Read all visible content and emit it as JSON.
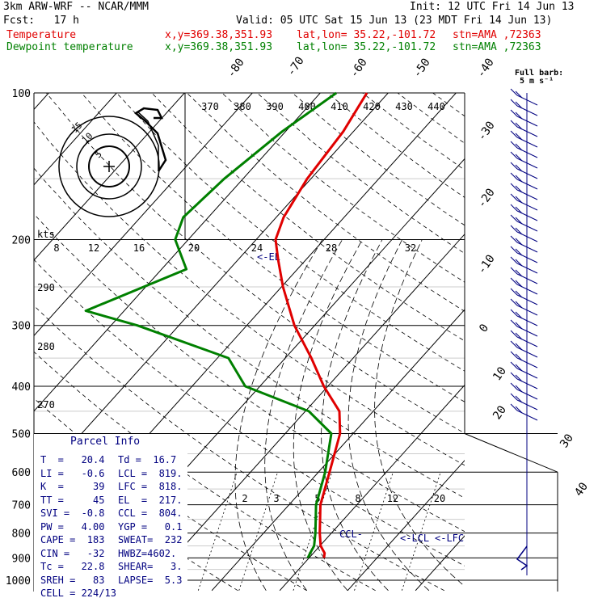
{
  "header": {
    "model": "3km ARW-WRF -- NCAR/MMM",
    "init": "Init: 12 UTC Fri 14 Jun 13",
    "fcst": "Fcst:   17 h",
    "valid": "Valid: 05 UTC Sat 15 Jun 13 (23 MDT Fri 14 Jun 13)",
    "temp_label": "Temperature",
    "dew_label": "Dewpoint temperature",
    "xy": "x,y=369.38,351.93",
    "latlon": "lat,lon= 35.22,-101.72",
    "stn": "stn=AMA ,72363"
  },
  "barb_legend": [
    "Full barb:",
    "5 m s⁻¹"
  ],
  "colors": {
    "temperature": "#e00000",
    "dewpoint": "#008000",
    "text_blue": "#000080",
    "grid": "#000000"
  },
  "chart_data": {
    "type": "skew-t log-p",
    "pressure_levels": [
      100,
      200,
      300,
      400,
      500,
      600,
      700,
      800,
      900,
      1000
    ],
    "y_scale": "log",
    "isotherm_labels": [
      "-80",
      "-70",
      "-60",
      "-50",
      "-40",
      "-30",
      "-20",
      "-10",
      "0",
      "10",
      "20",
      "30",
      "40"
    ],
    "theta_labels": [
      "370",
      "380",
      "390",
      "400",
      "410",
      "420",
      "430",
      "440"
    ],
    "theta_low_labels": [
      "290",
      "280",
      "270"
    ],
    "mixing_ratio_labels": [
      "2",
      "3",
      "5",
      "8",
      "12",
      "20"
    ],
    "hodograph": {
      "units": "kts",
      "ring_labels": [
        "5",
        "10",
        "15"
      ],
      "scale_labels": [
        "8",
        "12",
        "16",
        "20",
        "24",
        "28",
        "32"
      ]
    },
    "annotations": {
      "el": "<-EL",
      "ccl": "CCL-",
      "lcl": "<-LCL",
      "lfc": "<-LFC"
    },
    "series": [
      {
        "name": "Temperature",
        "points": [
          [
            100,
            -71
          ],
          [
            120,
            -68
          ],
          [
            150,
            -66
          ],
          [
            180,
            -63
          ],
          [
            200,
            -60
          ],
          [
            220,
            -55
          ],
          [
            250,
            -48
          ],
          [
            300,
            -37
          ],
          [
            350,
            -26
          ],
          [
            400,
            -17
          ],
          [
            450,
            -8
          ],
          [
            500,
            -3
          ],
          [
            600,
            3
          ],
          [
            700,
            8
          ],
          [
            800,
            14
          ],
          [
            850,
            17
          ],
          [
            880,
            19.5
          ],
          [
            900,
            20.4
          ]
        ]
      },
      {
        "name": "Dewpoint temperature",
        "points": [
          [
            100,
            -78
          ],
          [
            120,
            -82
          ],
          [
            150,
            -85
          ],
          [
            180,
            -86
          ],
          [
            200,
            -83
          ],
          [
            230,
            -74
          ],
          [
            280,
            -88
          ],
          [
            300,
            -73
          ],
          [
            350,
            -45
          ],
          [
            400,
            -35
          ],
          [
            450,
            -15
          ],
          [
            500,
            -5
          ],
          [
            600,
            2
          ],
          [
            700,
            7
          ],
          [
            800,
            13
          ],
          [
            850,
            15.5
          ],
          [
            880,
            16.2
          ],
          [
            900,
            16.7
          ]
        ]
      }
    ]
  },
  "parcel_info": {
    "title": "Parcel Info",
    "rows": [
      {
        "a": "T  =   20.4",
        "b": "Td =  16.7"
      },
      {
        "a": "LI =   -0.6",
        "b": "LCL =  819."
      },
      {
        "a": "K  =     39",
        "b": "LFC =  818."
      },
      {
        "a": "TT =     45",
        "b": "EL  =  217."
      },
      {
        "a": "SVI =  -0.8",
        "b": "CCL =  804."
      },
      {
        "a": "PW =   4.00",
        "b": "YGP =   0.1"
      },
      {
        "a": "CAPE =  183",
        "b": "SWEAT=  232"
      },
      {
        "a": "CIN =   -32",
        "b": "HWBZ=4602."
      },
      {
        "a": "Tc =   22.8",
        "b": "SHEAR=   3."
      },
      {
        "a": "SREH =   83",
        "b": "LAPSE=  5.3"
      },
      {
        "a": "CELL = 224/13",
        "b": ""
      }
    ]
  }
}
